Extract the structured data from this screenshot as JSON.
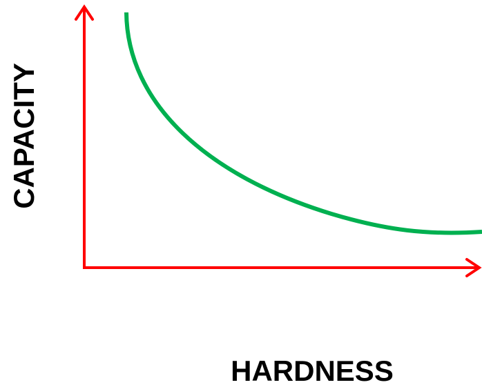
{
  "axes": {
    "y_label": "CAPACITY",
    "x_label": "HARDNESS"
  }
}
